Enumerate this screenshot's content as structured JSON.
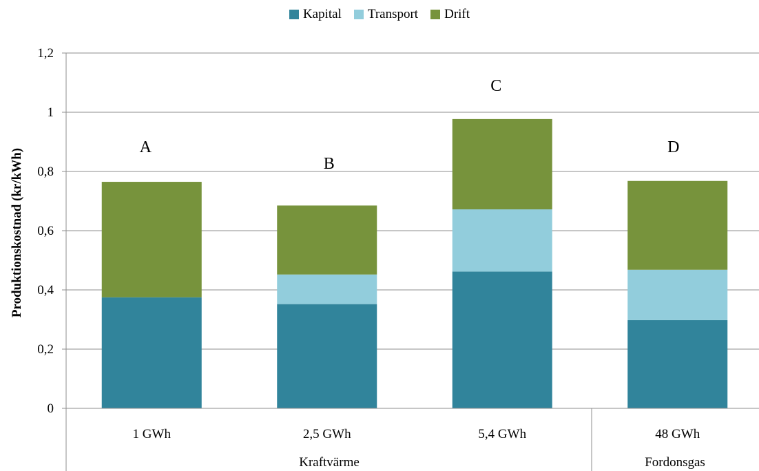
{
  "chart_data": {
    "type": "bar",
    "stacked": true,
    "categories": [
      "1 GWh",
      "2,5 GWh",
      "5,4 GWh",
      "48 GWh"
    ],
    "groups": [
      {
        "label": "Kraftvärme",
        "categories": [
          "1 GWh",
          "2,5 GWh",
          "5,4 GWh"
        ]
      },
      {
        "label": "Fordonsgas",
        "categories": [
          "48 GWh"
        ]
      }
    ],
    "bar_labels": [
      "A",
      "B",
      "C",
      "D"
    ],
    "series": [
      {
        "name": "Kapital",
        "color": "#31849b",
        "values": [
          0.375,
          0.352,
          0.462,
          0.298
        ]
      },
      {
        "name": "Transport",
        "color": "#92cddc",
        "values": [
          0.0,
          0.1,
          0.21,
          0.17
        ]
      },
      {
        "name": "Drift",
        "color": "#77933c",
        "values": [
          0.39,
          0.233,
          0.305,
          0.3
        ]
      }
    ],
    "ylabel": "Produktionskostnad (kr/kWh)",
    "ylim": [
      0,
      1.2
    ],
    "yticks": [
      "0",
      "0,2",
      "0,4",
      "0,6",
      "0,8",
      "1",
      "1,2"
    ],
    "grid": true,
    "legend_position": "top"
  }
}
